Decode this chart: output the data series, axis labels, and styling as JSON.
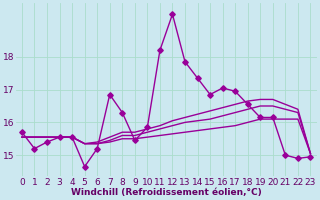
{
  "x": [
    0,
    1,
    2,
    3,
    4,
    5,
    6,
    7,
    8,
    9,
    10,
    11,
    12,
    13,
    14,
    15,
    16,
    17,
    18,
    19,
    20,
    21,
    22,
    23
  ],
  "line_main": [
    15.7,
    15.2,
    15.4,
    15.55,
    15.55,
    14.65,
    15.2,
    16.85,
    16.3,
    15.45,
    15.85,
    18.2,
    19.3,
    17.85,
    17.35,
    16.85,
    17.05,
    16.95,
    16.55,
    16.15,
    16.15,
    15.0,
    14.9,
    14.95
  ],
  "line_smooth1": [
    15.55,
    15.55,
    15.55,
    15.55,
    15.55,
    15.35,
    15.35,
    15.4,
    15.5,
    15.5,
    15.55,
    15.6,
    15.65,
    15.7,
    15.75,
    15.8,
    15.85,
    15.9,
    16.0,
    16.1,
    16.1,
    16.1,
    16.1,
    15.05
  ],
  "line_smooth2": [
    15.55,
    15.55,
    15.55,
    15.55,
    15.55,
    15.35,
    15.35,
    15.45,
    15.6,
    15.6,
    15.7,
    15.8,
    15.9,
    16.0,
    16.05,
    16.1,
    16.2,
    16.3,
    16.4,
    16.5,
    16.5,
    16.4,
    16.3,
    15.05
  ],
  "line_smooth3": [
    15.55,
    15.55,
    15.55,
    15.55,
    15.55,
    15.35,
    15.4,
    15.55,
    15.7,
    15.7,
    15.8,
    15.9,
    16.05,
    16.15,
    16.25,
    16.35,
    16.45,
    16.55,
    16.65,
    16.7,
    16.7,
    16.55,
    16.4,
    15.05
  ],
  "line_color": "#990099",
  "bg_color": "#cce8f0",
  "grid_color": "#aaddcc",
  "xlabel": "Windchill (Refroidissement éolien,°C)",
  "ylim_min": 14.35,
  "ylim_max": 19.65,
  "xlim_min": -0.5,
  "xlim_max": 23.5,
  "yticks": [
    15,
    16,
    17,
    18
  ],
  "marker": "D",
  "markersize": 2.8,
  "linewidth": 1.0,
  "xlabel_fontsize": 6.5,
  "tick_fontsize": 6.5
}
